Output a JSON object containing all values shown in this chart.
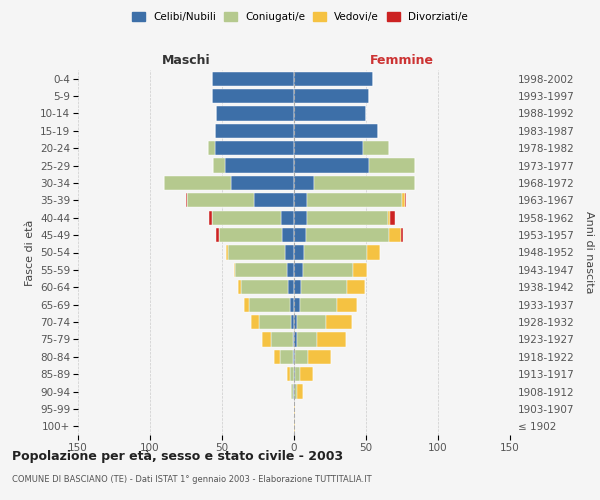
{
  "age_groups": [
    "100+",
    "95-99",
    "90-94",
    "85-89",
    "80-84",
    "75-79",
    "70-74",
    "65-69",
    "60-64",
    "55-59",
    "50-54",
    "45-49",
    "40-44",
    "35-39",
    "30-34",
    "25-29",
    "20-24",
    "15-19",
    "10-14",
    "5-9",
    "0-4"
  ],
  "birth_years": [
    "≤ 1902",
    "1903-1907",
    "1908-1912",
    "1913-1917",
    "1918-1922",
    "1923-1927",
    "1928-1932",
    "1933-1937",
    "1938-1942",
    "1943-1947",
    "1948-1952",
    "1953-1957",
    "1958-1962",
    "1963-1967",
    "1968-1972",
    "1973-1977",
    "1978-1982",
    "1983-1987",
    "1988-1992",
    "1993-1997",
    "1998-2002"
  ],
  "colors": {
    "celibi": "#3d6fa8",
    "coniugati": "#b5c98e",
    "vedovi": "#f5c242",
    "divorziati": "#cc2222"
  },
  "males": {
    "celibi": [
      0,
      0,
      1,
      0,
      1,
      1,
      2,
      3,
      4,
      5,
      6,
      8,
      9,
      28,
      44,
      48,
      55,
      55,
      54,
      57,
      57
    ],
    "coniugati": [
      0,
      0,
      1,
      3,
      9,
      15,
      22,
      28,
      33,
      36,
      40,
      44,
      48,
      46,
      46,
      8,
      5,
      0,
      0,
      0,
      0
    ],
    "vedovi": [
      0,
      0,
      0,
      2,
      4,
      6,
      6,
      4,
      2,
      1,
      1,
      0,
      0,
      0,
      0,
      0,
      0,
      0,
      0,
      0,
      0
    ],
    "divorziati": [
      0,
      0,
      0,
      0,
      0,
      0,
      0,
      0,
      0,
      0,
      0,
      2,
      2,
      1,
      0,
      0,
      0,
      0,
      0,
      0,
      0
    ]
  },
  "females": {
    "celibi": [
      0,
      0,
      0,
      1,
      1,
      2,
      2,
      4,
      5,
      6,
      7,
      8,
      9,
      9,
      14,
      52,
      48,
      58,
      50,
      52,
      55
    ],
    "coniugati": [
      0,
      0,
      2,
      3,
      9,
      14,
      20,
      26,
      32,
      35,
      44,
      58,
      56,
      66,
      70,
      32,
      18,
      0,
      0,
      0,
      0
    ],
    "vedovi": [
      1,
      1,
      4,
      9,
      16,
      20,
      18,
      14,
      12,
      10,
      9,
      8,
      2,
      2,
      0,
      0,
      0,
      0,
      0,
      0,
      0
    ],
    "divorziati": [
      0,
      0,
      0,
      0,
      0,
      0,
      0,
      0,
      0,
      0,
      0,
      2,
      3,
      1,
      0,
      0,
      0,
      0,
      0,
      0,
      0
    ]
  },
  "title": "Popolazione per età, sesso e stato civile - 2003",
  "subtitle": "COMUNE DI BASCIANO (TE) - Dati ISTAT 1° gennaio 2003 - Elaborazione TUTTITALIA.IT",
  "ylabel_left": "Fasce di età",
  "ylabel_right": "Anni di nascita",
  "header_left": "Maschi",
  "header_right": "Femmine",
  "xlim": 150,
  "bg_color": "#f5f5f5",
  "grid_color": "#cccccc"
}
